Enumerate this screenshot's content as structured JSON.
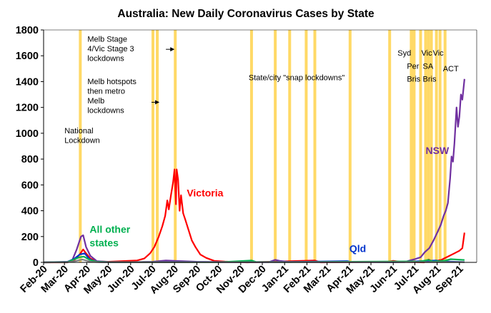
{
  "chart_data": {
    "type": "line",
    "title": "Australia: New Daily Coronavirus Cases by State",
    "xlabel": "",
    "ylabel": "",
    "ylim": [
      0,
      1800
    ],
    "yticks": [
      0,
      200,
      400,
      600,
      800,
      1000,
      1200,
      1400,
      1600,
      1800
    ],
    "xlim": [
      "2020-02-01",
      "2021-09-25"
    ],
    "x_tick_labels": [
      "Feb-20",
      "Mar-20",
      "Apr-20",
      "May-20",
      "Jun-20",
      "Jul-20",
      "Aug-20",
      "Sep-20",
      "Oct-20",
      "Nov-20",
      "Dec-20",
      "Jan-21",
      "Feb-21",
      "Mar-21",
      "Apr-21",
      "May-21",
      "Jun-21",
      "Jul-21",
      "Aug-21",
      "Sep-21"
    ],
    "x_tick_dates": [
      "2020-02-01",
      "2020-03-01",
      "2020-04-01",
      "2020-05-01",
      "2020-06-01",
      "2020-07-01",
      "2020-08-01",
      "2020-09-01",
      "2020-10-01",
      "2020-11-01",
      "2020-12-01",
      "2021-01-01",
      "2021-02-01",
      "2021-03-01",
      "2021-04-01",
      "2021-05-01",
      "2021-06-01",
      "2021-07-01",
      "2021-08-01",
      "2021-09-01"
    ],
    "grid": false,
    "lockdown_band_color": "#FFD966",
    "lockdown_dates": [
      "2020-03-23",
      "2020-07-02",
      "2020-07-08",
      "2020-08-02",
      "2020-11-16",
      "2020-12-19",
      "2021-01-08",
      "2021-01-31",
      "2021-02-12",
      "2021-04-02",
      "2021-05-27",
      "2021-06-26",
      "2021-06-29",
      "2021-06-30",
      "2021-07-09",
      "2021-07-16",
      "2021-07-20",
      "2021-07-24",
      "2021-07-31",
      "2021-08-05",
      "2021-08-12"
    ],
    "series": [
      {
        "name": "Victoria",
        "color": "#FF0000",
        "points": [
          [
            "2020-02-01",
            0
          ],
          [
            "2020-03-05",
            0
          ],
          [
            "2020-03-15",
            20
          ],
          [
            "2020-03-22",
            60
          ],
          [
            "2020-03-27",
            100
          ],
          [
            "2020-03-31",
            70
          ],
          [
            "2020-04-06",
            30
          ],
          [
            "2020-04-15",
            8
          ],
          [
            "2020-05-01",
            5
          ],
          [
            "2020-05-20",
            10
          ],
          [
            "2020-06-10",
            15
          ],
          [
            "2020-06-20",
            30
          ],
          [
            "2020-06-28",
            70
          ],
          [
            "2020-07-04",
            120
          ],
          [
            "2020-07-10",
            200
          ],
          [
            "2020-07-15",
            280
          ],
          [
            "2020-07-19",
            360
          ],
          [
            "2020-07-22",
            480
          ],
          [
            "2020-07-24",
            410
          ],
          [
            "2020-07-27",
            520
          ],
          [
            "2020-07-30",
            620
          ],
          [
            "2020-08-01",
            720
          ],
          [
            "2020-08-03",
            450
          ],
          [
            "2020-08-04",
            720
          ],
          [
            "2020-08-06",
            640
          ],
          [
            "2020-08-08",
            400
          ],
          [
            "2020-08-10",
            520
          ],
          [
            "2020-08-13",
            380
          ],
          [
            "2020-08-16",
            330
          ],
          [
            "2020-08-20",
            260
          ],
          [
            "2020-08-25",
            170
          ],
          [
            "2020-08-30",
            120
          ],
          [
            "2020-09-06",
            60
          ],
          [
            "2020-09-14",
            35
          ],
          [
            "2020-09-25",
            12
          ],
          [
            "2020-10-10",
            6
          ],
          [
            "2020-10-25",
            3
          ],
          [
            "2020-11-10",
            0
          ],
          [
            "2021-02-12",
            15
          ],
          [
            "2021-02-20",
            0
          ],
          [
            "2021-05-25",
            5
          ],
          [
            "2021-06-01",
            12
          ],
          [
            "2021-06-10",
            5
          ],
          [
            "2021-07-14",
            0
          ],
          [
            "2021-07-20",
            22
          ],
          [
            "2021-07-26",
            6
          ],
          [
            "2021-08-07",
            20
          ],
          [
            "2021-08-18",
            50
          ],
          [
            "2021-08-25",
            70
          ],
          [
            "2021-09-01",
            90
          ],
          [
            "2021-09-05",
            110
          ],
          [
            "2021-09-08",
            230
          ]
        ]
      },
      {
        "name": "NSW",
        "color": "#7030A0",
        "points": [
          [
            "2020-02-01",
            0
          ],
          [
            "2020-03-05",
            5
          ],
          [
            "2020-03-12",
            20
          ],
          [
            "2020-03-18",
            100
          ],
          [
            "2020-03-24",
            200
          ],
          [
            "2020-03-27",
            210
          ],
          [
            "2020-03-31",
            120
          ],
          [
            "2020-04-06",
            50
          ],
          [
            "2020-04-15",
            10
          ],
          [
            "2020-05-01",
            4
          ],
          [
            "2020-06-01",
            2
          ],
          [
            "2020-07-01",
            5
          ],
          [
            "2020-07-20",
            15
          ],
          [
            "2020-08-10",
            10
          ],
          [
            "2020-09-01",
            5
          ],
          [
            "2020-10-01",
            3
          ],
          [
            "2020-11-01",
            2
          ],
          [
            "2020-12-10",
            2
          ],
          [
            "2020-12-19",
            20
          ],
          [
            "2020-12-25",
            12
          ],
          [
            "2021-01-05",
            5
          ],
          [
            "2021-02-01",
            2
          ],
          [
            "2021-06-17",
            2
          ],
          [
            "2021-06-24",
            15
          ],
          [
            "2021-07-01",
            25
          ],
          [
            "2021-07-09",
            40
          ],
          [
            "2021-07-15",
            80
          ],
          [
            "2021-07-21",
            110
          ],
          [
            "2021-07-27",
            170
          ],
          [
            "2021-08-02",
            240
          ],
          [
            "2021-08-06",
            290
          ],
          [
            "2021-08-10",
            360
          ],
          [
            "2021-08-13",
            400
          ],
          [
            "2021-08-16",
            460
          ],
          [
            "2021-08-19",
            650
          ],
          [
            "2021-08-21",
            820
          ],
          [
            "2021-08-23",
            780
          ],
          [
            "2021-08-25",
            920
          ],
          [
            "2021-08-28",
            1200
          ],
          [
            "2021-08-30",
            1050
          ],
          [
            "2021-09-01",
            1130
          ],
          [
            "2021-09-03",
            1300
          ],
          [
            "2021-09-05",
            1260
          ],
          [
            "2021-09-08",
            1420
          ]
        ]
      },
      {
        "name": "Qld",
        "color": "#0033CC",
        "points": [
          [
            "2020-02-01",
            0
          ],
          [
            "2020-03-05",
            2
          ],
          [
            "2020-03-15",
            30
          ],
          [
            "2020-03-22",
            60
          ],
          [
            "2020-03-29",
            70
          ],
          [
            "2020-04-04",
            30
          ],
          [
            "2020-04-12",
            5
          ],
          [
            "2020-05-01",
            1
          ],
          [
            "2020-08-01",
            3
          ],
          [
            "2021-01-05",
            3
          ],
          [
            "2021-03-29",
            10
          ],
          [
            "2021-04-02",
            5
          ],
          [
            "2021-06-01",
            1
          ],
          [
            "2021-07-31",
            15
          ],
          [
            "2021-08-05",
            8
          ],
          [
            "2021-09-08",
            3
          ]
        ]
      },
      {
        "name": "All other states",
        "color": "#00B050",
        "points": [
          [
            "2020-02-01",
            0
          ],
          [
            "2020-03-05",
            2
          ],
          [
            "2020-03-15",
            25
          ],
          [
            "2020-03-22",
            40
          ],
          [
            "2020-03-28",
            45
          ],
          [
            "2020-04-05",
            20
          ],
          [
            "2020-04-15",
            5
          ],
          [
            "2020-05-01",
            2
          ],
          [
            "2020-10-01",
            1
          ],
          [
            "2020-11-16",
            15
          ],
          [
            "2020-11-22",
            4
          ],
          [
            "2021-01-01",
            2
          ],
          [
            "2021-06-27",
            8
          ],
          [
            "2021-07-05",
            4
          ],
          [
            "2021-07-20",
            20
          ],
          [
            "2021-07-26",
            6
          ],
          [
            "2021-08-12",
            14
          ],
          [
            "2021-08-20",
            25
          ],
          [
            "2021-09-08",
            18
          ]
        ]
      },
      {
        "name": "",
        "color": "#7F7F7F",
        "points": [
          [
            "2020-02-01",
            0
          ],
          [
            "2020-03-05",
            1
          ],
          [
            "2020-03-16",
            10
          ],
          [
            "2020-03-26",
            22
          ],
          [
            "2020-04-06",
            5
          ],
          [
            "2020-04-20",
            1
          ],
          [
            "2021-09-08",
            2
          ]
        ]
      }
    ],
    "series_labels": [
      {
        "text": "Victoria",
        "color": "#FF0000",
        "x": "2020-08-18",
        "y": 510
      },
      {
        "text": "NSW",
        "color": "#7030A0",
        "x": "2021-07-16",
        "y": 840
      },
      {
        "text": "Qld",
        "color": "#0033CC",
        "x": "2021-04-01",
        "y": 80
      },
      {
        "text": "All other",
        "color": "#00B050",
        "x": "2020-04-05",
        "y": 230
      },
      {
        "text": "states",
        "color": "#00B050",
        "x": "2020-04-05",
        "y": 125
      }
    ],
    "annotations": [
      {
        "lines": [
          "Melb Stage",
          "4/Vic Stage 3",
          "lockdowns"
        ],
        "x": "2020-04-02",
        "y": 1710
      },
      {
        "lines": [
          "Melb hotspots",
          "then metro",
          "Melb",
          "lockdowns"
        ],
        "x": "2020-04-02",
        "y": 1380
      },
      {
        "lines": [
          "National",
          "Lockdown"
        ],
        "x": "2020-03-01",
        "y": 1000
      },
      {
        "lines": [
          "State/city \"snap lockdowns\""
        ],
        "x": "2020-11-12",
        "y": 1410
      },
      {
        "lines": [
          "Syd"
        ],
        "x": "2021-06-07",
        "y": 1600
      },
      {
        "lines": [
          "Per"
        ],
        "x": "2021-06-20",
        "y": 1500
      },
      {
        "lines": [
          "Bris"
        ],
        "x": "2021-06-20",
        "y": 1400
      },
      {
        "lines": [
          "Vic"
        ],
        "x": "2021-07-10",
        "y": 1600
      },
      {
        "lines": [
          "SA"
        ],
        "x": "2021-07-12",
        "y": 1500
      },
      {
        "lines": [
          "Bris"
        ],
        "x": "2021-07-12",
        "y": 1400
      },
      {
        "lines": [
          "Vic"
        ],
        "x": "2021-07-26",
        "y": 1600
      },
      {
        "lines": [
          "ACT"
        ],
        "x": "2021-08-09",
        "y": 1480
      }
    ],
    "arrows": [
      {
        "from": [
          "2020-07-20",
          1650
        ],
        "to": [
          "2020-08-01",
          1650
        ]
      },
      {
        "from": [
          "2020-06-30",
          1240
        ],
        "to": [
          "2020-07-11",
          1240
        ]
      }
    ]
  }
}
